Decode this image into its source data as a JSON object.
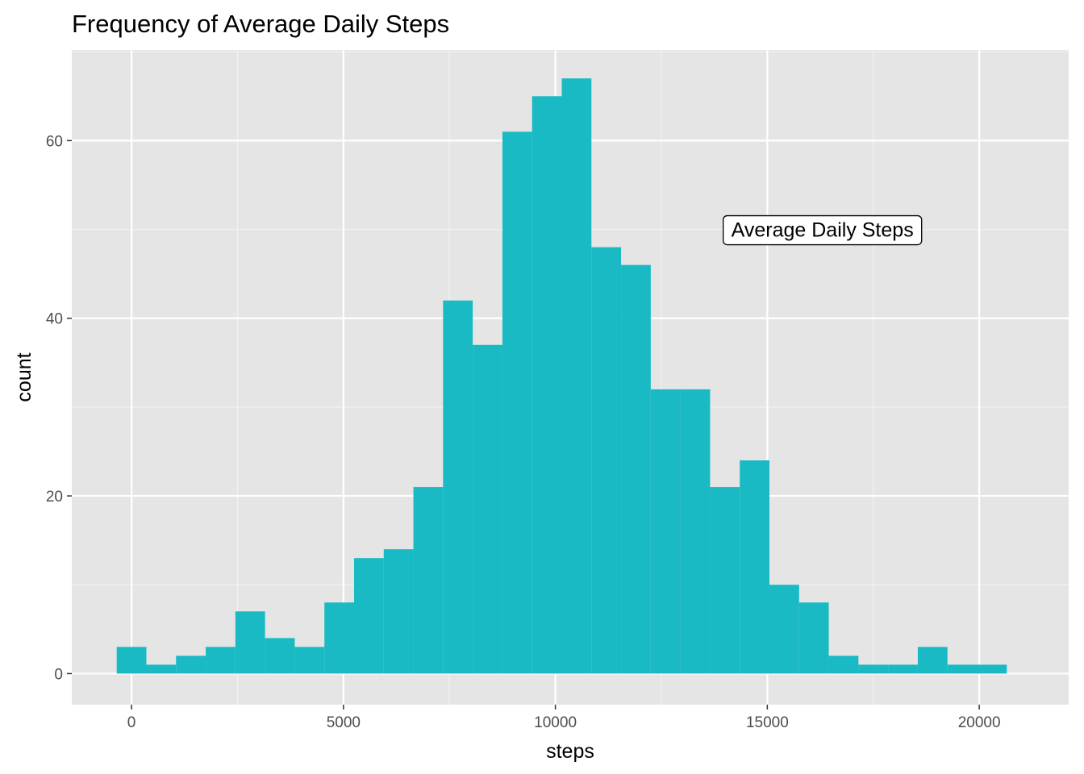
{
  "chart_data": {
    "type": "bar",
    "title": "Frequency of Average Daily Steps",
    "xlabel": "steps",
    "ylabel": "count",
    "bar_color": "#19BAC4",
    "panel_color": "#E5E5E5",
    "grid": true,
    "bin_width": 700,
    "xlim": [
      -1410,
      22110
    ],
    "ylim": [
      -3.5,
      70.2
    ],
    "x_ticks": [
      0,
      5000,
      10000,
      15000,
      20000
    ],
    "x_tick_labels": [
      "0",
      "5000",
      "10000",
      "15000",
      "20000"
    ],
    "y_ticks": [
      0,
      20,
      40,
      60
    ],
    "y_tick_labels": [
      "0",
      "20",
      "40",
      "60"
    ],
    "bins": [
      {
        "start": -350,
        "end": 350,
        "count": 3
      },
      {
        "start": 350,
        "end": 1050,
        "count": 1
      },
      {
        "start": 1050,
        "end": 1750,
        "count": 2
      },
      {
        "start": 1750,
        "end": 2450,
        "count": 3
      },
      {
        "start": 2450,
        "end": 3150,
        "count": 7
      },
      {
        "start": 3150,
        "end": 3850,
        "count": 4
      },
      {
        "start": 3850,
        "end": 4550,
        "count": 3
      },
      {
        "start": 4550,
        "end": 5250,
        "count": 8
      },
      {
        "start": 5250,
        "end": 5950,
        "count": 13
      },
      {
        "start": 5950,
        "end": 6650,
        "count": 14
      },
      {
        "start": 6650,
        "end": 7350,
        "count": 21
      },
      {
        "start": 7350,
        "end": 8050,
        "count": 42
      },
      {
        "start": 8050,
        "end": 8750,
        "count": 37
      },
      {
        "start": 8750,
        "end": 9450,
        "count": 61
      },
      {
        "start": 9450,
        "end": 10150,
        "count": 65
      },
      {
        "start": 10150,
        "end": 10850,
        "count": 67
      },
      {
        "start": 10850,
        "end": 11550,
        "count": 48
      },
      {
        "start": 11550,
        "end": 12250,
        "count": 46
      },
      {
        "start": 12250,
        "end": 12950,
        "count": 32
      },
      {
        "start": 12950,
        "end": 13650,
        "count": 32
      },
      {
        "start": 13650,
        "end": 14350,
        "count": 21
      },
      {
        "start": 14350,
        "end": 15050,
        "count": 24
      },
      {
        "start": 15050,
        "end": 15750,
        "count": 10
      },
      {
        "start": 15750,
        "end": 16450,
        "count": 8
      },
      {
        "start": 16450,
        "end": 17150,
        "count": 2
      },
      {
        "start": 17150,
        "end": 17850,
        "count": 1
      },
      {
        "start": 17850,
        "end": 18550,
        "count": 1
      },
      {
        "start": 18550,
        "end": 19250,
        "count": 3
      },
      {
        "start": 19250,
        "end": 19950,
        "count": 1
      },
      {
        "start": 19950,
        "end": 20650,
        "count": 1
      }
    ],
    "annotation": {
      "text": "Average Daily Steps",
      "x": 16300,
      "y": 50
    }
  }
}
